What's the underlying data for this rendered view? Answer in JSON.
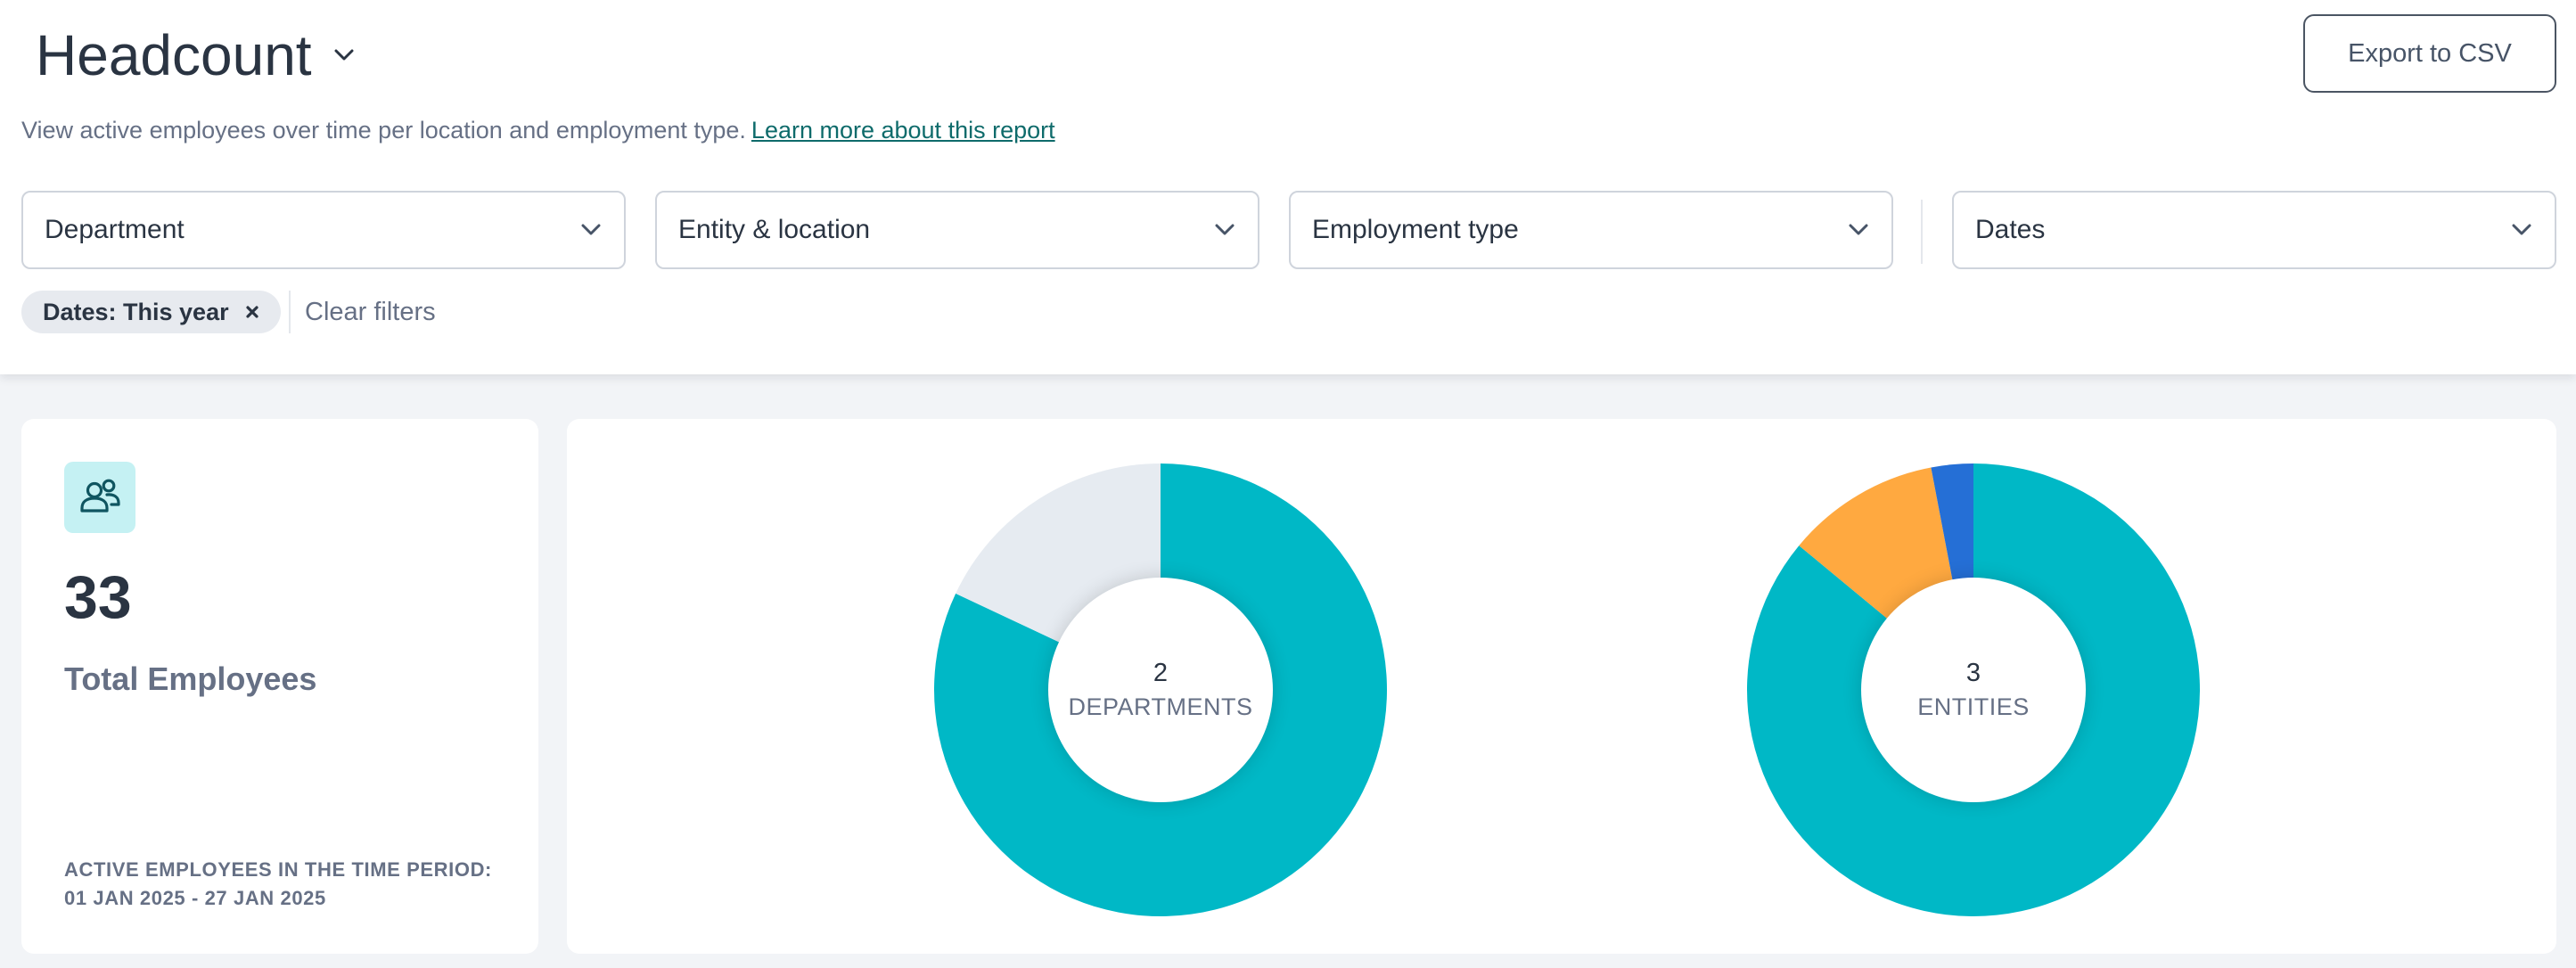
{
  "report": {
    "title": "Headcount",
    "subtitle": "View active employees over time per location and employment type.",
    "learn_more_link": "Learn more about this report",
    "export_label": "Export to CSV"
  },
  "filters": {
    "department": "Department",
    "entity_location": "Entity & location",
    "employment_type": "Employment type",
    "dates": "Dates"
  },
  "active_filters": {
    "chip_label": "Dates: This year",
    "clear_label": "Clear filters"
  },
  "summary": {
    "total_value": "33",
    "total_label": "Total Employees",
    "period_line1": "ACTIVE EMPLOYEES IN THE TIME PERIOD:",
    "period_line2": "01 JAN 2025 - 27 JAN 2025",
    "icon": "users-icon"
  },
  "colors": {
    "teal": "#00b8c6",
    "light_gray": "#e6ebf1",
    "orange": "#ffa940",
    "blue": "#256fd6"
  },
  "chart_data": [
    {
      "type": "pie",
      "center_value": "2",
      "center_label": "DEPARTMENTS",
      "slices": [
        {
          "value": 0.82,
          "color": "#00b8c6"
        },
        {
          "value": 0.18,
          "color": "#e6ebf1"
        }
      ]
    },
    {
      "type": "pie",
      "center_value": "3",
      "center_label": "ENTITIES",
      "slices": [
        {
          "value": 0.86,
          "color": "#00b8c6"
        },
        {
          "value": 0.11,
          "color": "#ffa940"
        },
        {
          "value": 0.03,
          "color": "#256fd6"
        }
      ]
    }
  ]
}
